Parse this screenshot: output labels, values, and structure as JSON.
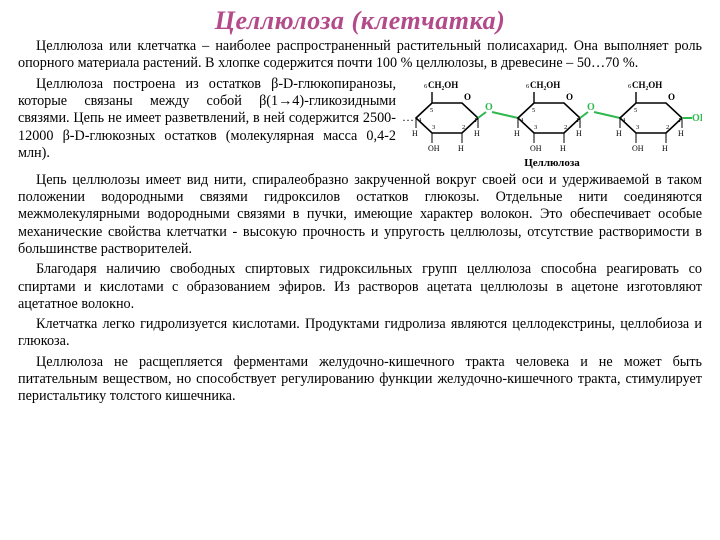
{
  "title_color": "#b34a8a",
  "title": "Целлюлоза  (клетчатка)",
  "p1": "Целлюлоза или клетчатка – наиболее распространенный растительный полисахарид. Она выполняет роль опорного материала растений. В хлопке содержится почти 100 % целлюлозы, в древесине – 50…70 %.",
  "p2": "Целлюлоза построена из остатков β-D-глюкопиранозы, которые связаны между собой β(1→4)-гликозидными связями. Цепь не имеет разветвлений, в ней содержится 2500-12000 β-D-глюкозных остатков (молекулярная масса 0,4-2 млн).",
  "p3": "Цепь целлюлозы имеет вид нити, спиралеобразно закрученной вокруг своей оси и удерживаемой в таком положении водородными связями гидроксилов остатков глюкозы. Отдельные нити соединяются межмолекулярными водородными связями в пучки, имеющие характер волокон. Это обеспечивает особые механические свойства клетчатки - высокую прочность и упругость целлюлозы, отсутствие растворимости в большинстве растворителей.",
  "p4": "Благодаря наличию свободных спиртовых гидроксильных групп целлюлоза способна реагировать со спиртами и кислотами с образованием эфиров. Из растворов ацетата целлюлозы в ацетоне изготовляют ацетатное волокно.",
  "p5": "Клетчатка легко гидролизуется кислотами. Продуктами гидролиза являются целлодекстрины, целлобиоза и глюкоза.",
  "p6": "Целлюлоза не расщепляется ферментами желудочно-кишечного тракта человека и не может быть питательным веществом, но способствует регулированию функции желудочно-кишечного тракта, стимулирует перистальтику толстого кишечника.",
  "diagram": {
    "caption": "Целлюлоза",
    "linker_label": "O",
    "linker_color": "#2fb84d",
    "text_color": "#000000",
    "units": [
      {
        "top_label": "CH₂OH",
        "top_prefix": "6",
        "ring_numbers": [
          "5",
          "4",
          "3",
          "2",
          "1"
        ],
        "subs": [
          "H",
          "OH",
          "H",
          "H",
          "OH"
        ]
      },
      {
        "top_label": "CH₂OH",
        "top_prefix": "6",
        "ring_numbers": [
          "5",
          "4",
          "3",
          "2",
          "1"
        ],
        "subs": [
          "H",
          "OH",
          "H",
          "H",
          "OH"
        ]
      },
      {
        "top_label": "CH₂OH",
        "top_prefix": "6",
        "ring_numbers": [
          "5",
          "4",
          "3",
          "2",
          "1"
        ],
        "subs": [
          "H",
          "OH",
          "H",
          "H",
          "OH"
        ],
        "end_oh": "OH"
      }
    ]
  }
}
